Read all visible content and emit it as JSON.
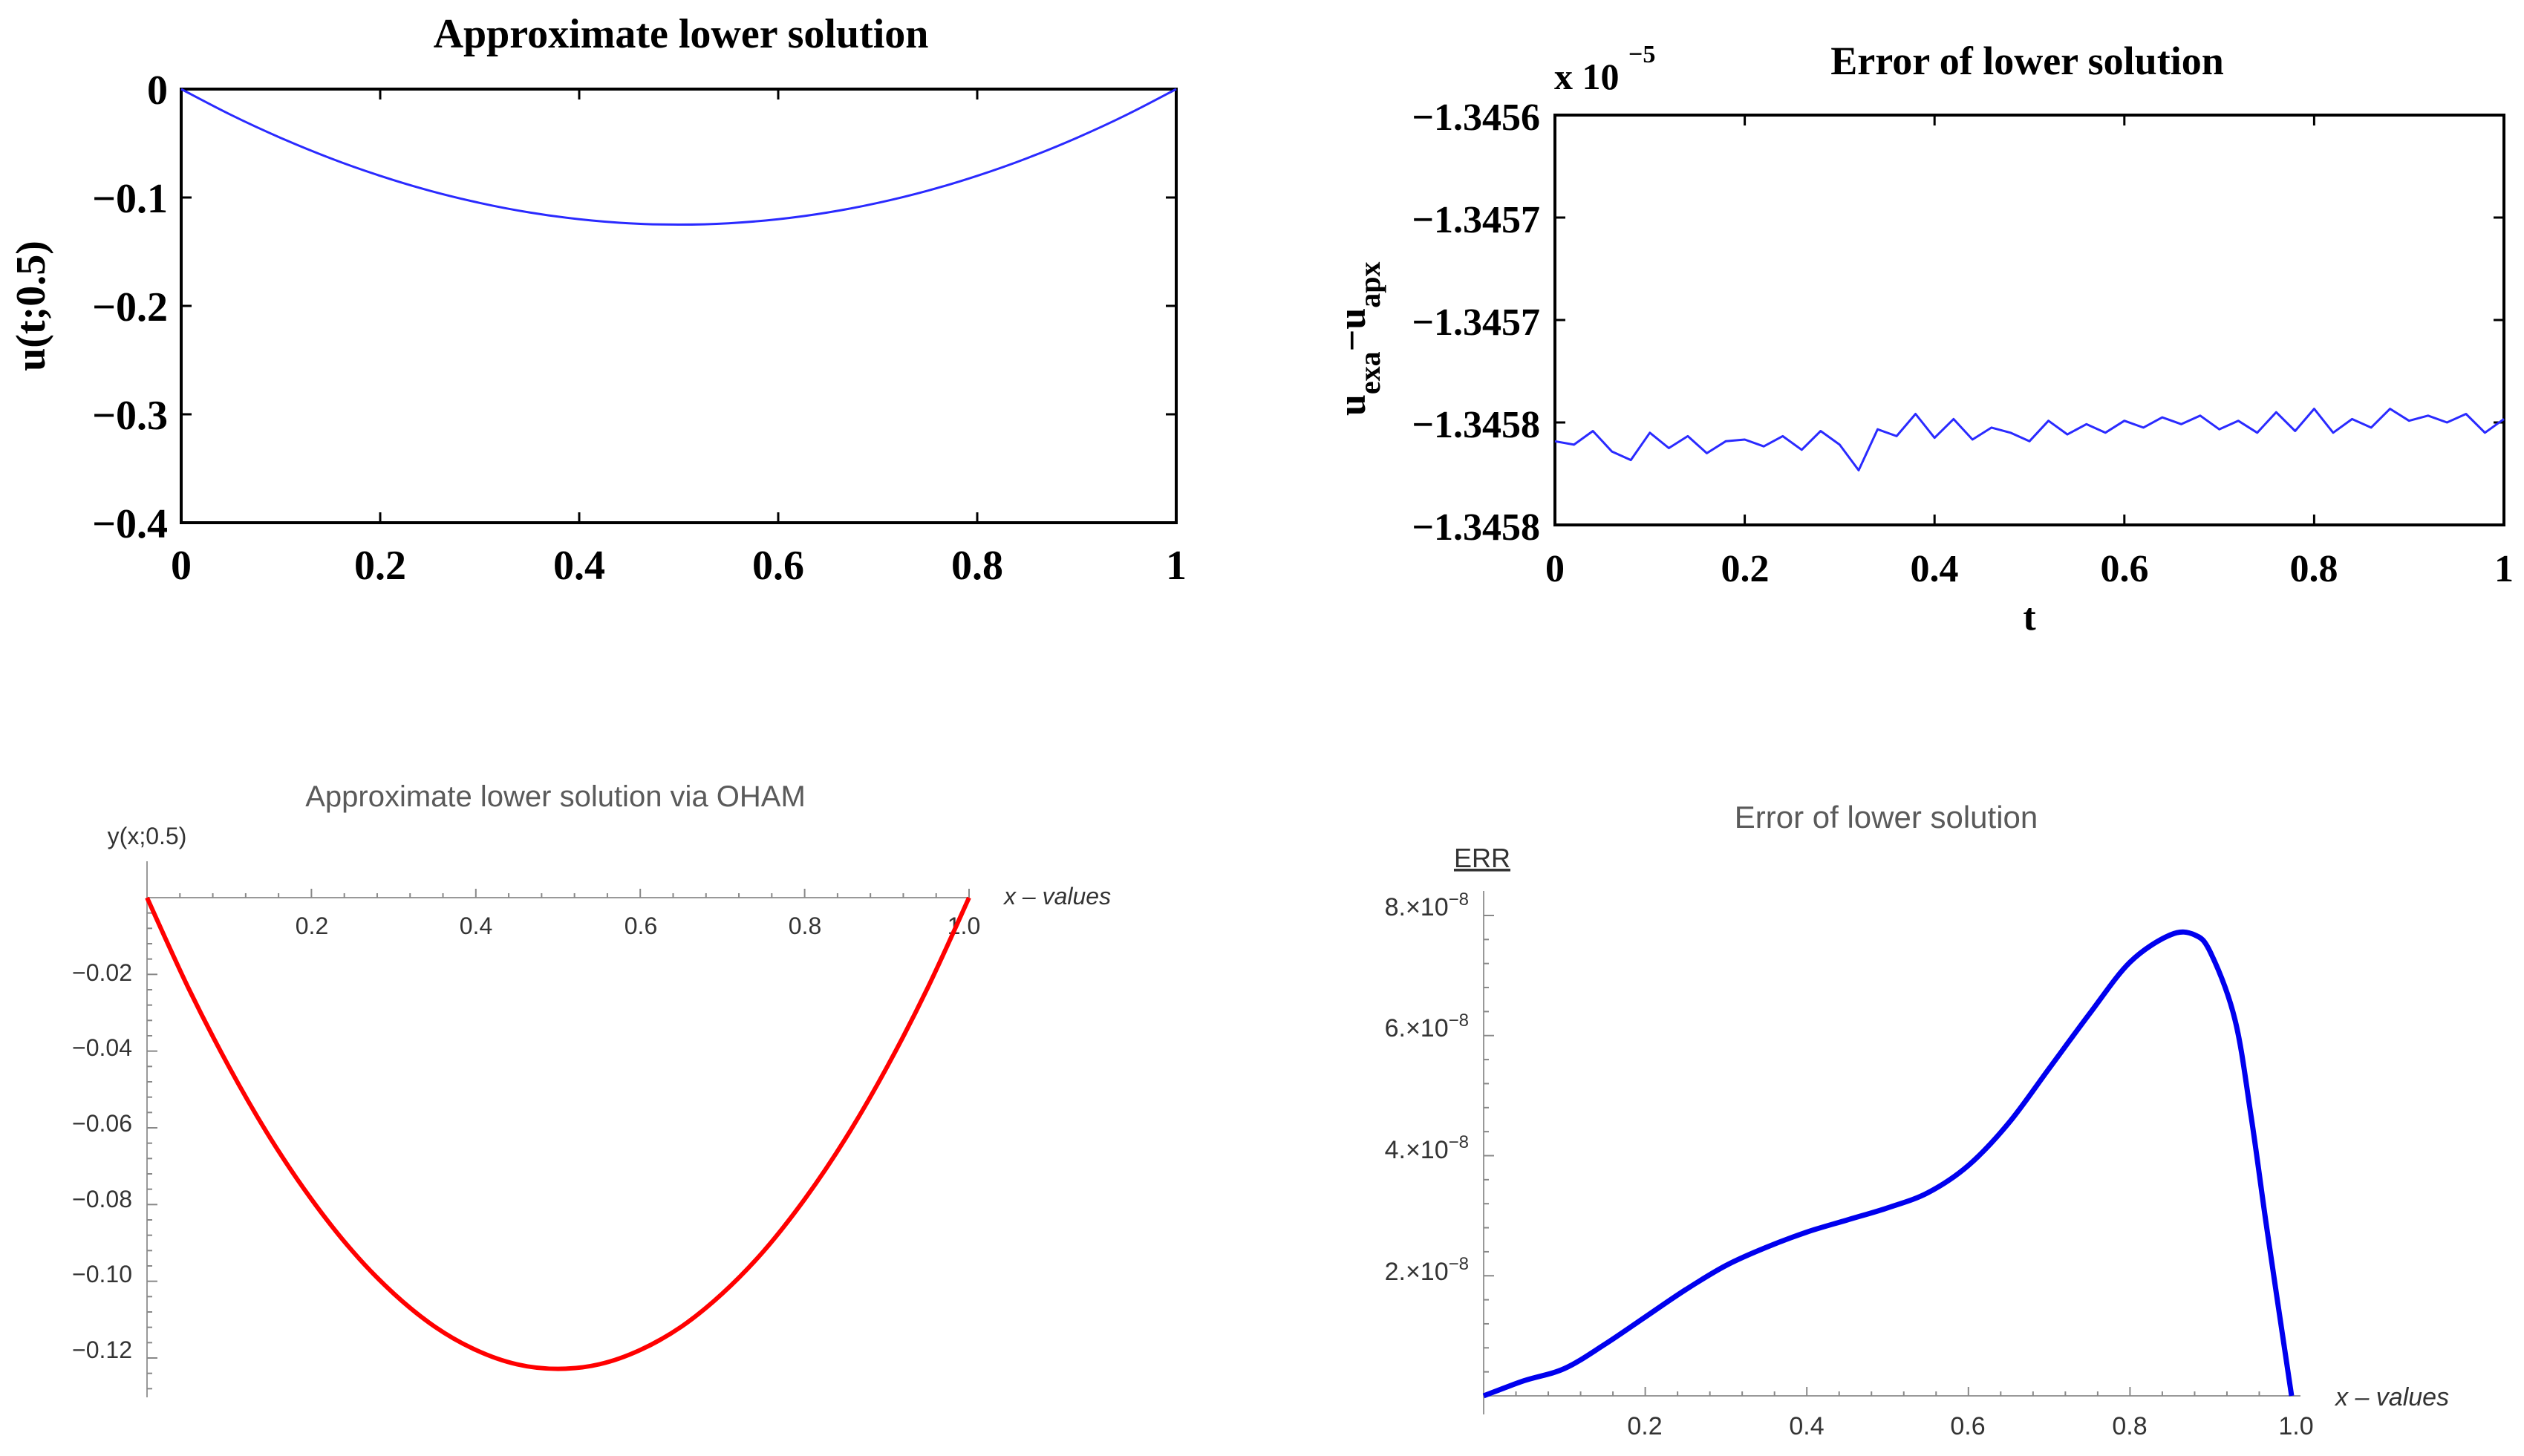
{
  "chart_data": [
    {
      "type": "line",
      "title": "Approximate lower solution",
      "xlabel": "",
      "ylabel": "u(t;0.5)",
      "xlim": [
        0,
        1
      ],
      "ylim": [
        -0.4,
        0
      ],
      "xticks": [
        "0",
        "0.2",
        "0.4",
        "0.6",
        "0.8",
        "1"
      ],
      "yticks": [
        "0",
        "−0.1",
        "−0.2",
        "−0.3",
        "−0.4"
      ],
      "series": [
        {
          "name": "u(t;0.5)",
          "color": "#2a2aff",
          "x": [
            0,
            0.05,
            0.1,
            0.15,
            0.2,
            0.25,
            0.3,
            0.35,
            0.4,
            0.45,
            0.5,
            0.55,
            0.6,
            0.65,
            0.7,
            0.75,
            0.8,
            0.85,
            0.9,
            0.95,
            1
          ],
          "y": [
            0,
            -0.0238,
            -0.045,
            -0.0638,
            -0.08,
            -0.0938,
            -0.105,
            -0.1138,
            -0.12,
            -0.1238,
            -0.125,
            -0.1238,
            -0.12,
            -0.1138,
            -0.105,
            -0.0938,
            -0.08,
            -0.0638,
            -0.045,
            -0.0238,
            0
          ]
        }
      ]
    },
    {
      "type": "line",
      "title": "Error of lower solution",
      "xlabel": "t",
      "ylabel_main": "u",
      "ylabel_sub1": "exa",
      "ylabel_mid": "−u",
      "ylabel_sub2": "apx",
      "multiplier": "x 10",
      "multiplier_exp": "−5",
      "xlim": [
        0,
        1
      ],
      "ylim": [
        -1.34584,
        -1.3456
      ],
      "xticks": [
        "0",
        "0.2",
        "0.4",
        "0.6",
        "0.8",
        "1"
      ],
      "yticks": [
        "−1.3456",
        "−1.3457",
        "−1.3457",
        "−1.3458",
        "−1.3458"
      ],
      "series": [
        {
          "name": "error",
          "color": "#2a2aff",
          "x": [
            0,
            0.02,
            0.04,
            0.06,
            0.08,
            0.1,
            0.12,
            0.14,
            0.16,
            0.18,
            0.2,
            0.22,
            0.24,
            0.26,
            0.28,
            0.3,
            0.32,
            0.34,
            0.36,
            0.38,
            0.4,
            0.42,
            0.44,
            0.46,
            0.48,
            0.5,
            0.52,
            0.54,
            0.56,
            0.58,
            0.6,
            0.62,
            0.64,
            0.66,
            0.68,
            0.7,
            0.72,
            0.74,
            0.76,
            0.78,
            0.8,
            0.82,
            0.84,
            0.86,
            0.88,
            0.9,
            0.92,
            0.94,
            0.96,
            0.98,
            1
          ],
          "y": [
            -1.345791,
            -1.345793,
            -1.345785,
            -1.345797,
            -1.345802,
            -1.345786,
            -1.345795,
            -1.345788,
            -1.345798,
            -1.345791,
            -1.34579,
            -1.345794,
            -1.345788,
            -1.345796,
            -1.345785,
            -1.345793,
            -1.345808,
            -1.345784,
            -1.345788,
            -1.345775,
            -1.345789,
            -1.345778,
            -1.34579,
            -1.345783,
            -1.345786,
            -1.345791,
            -1.345779,
            -1.345787,
            -1.345781,
            -1.345786,
            -1.345779,
            -1.345783,
            -1.345777,
            -1.345781,
            -1.345776,
            -1.345784,
            -1.345779,
            -1.345786,
            -1.345774,
            -1.345785,
            -1.345772,
            -1.345786,
            -1.345778,
            -1.345783,
            -1.345772,
            -1.345779,
            -1.345776,
            -1.34578,
            -1.345775,
            -1.345786,
            -1.345778
          ]
        }
      ]
    },
    {
      "type": "line",
      "title": "Approximate lower solution via OHAM",
      "xlabel": "x – values",
      "ylabel": "y(x;0.5)",
      "xlim": [
        0,
        1
      ],
      "ylim": [
        -0.13,
        0
      ],
      "xticks": [
        "0.2",
        "0.4",
        "0.6",
        "0.8",
        "1.0"
      ],
      "yticks": [
        "−0.02",
        "−0.04",
        "−0.06",
        "−0.08",
        "−0.10",
        "−0.12"
      ],
      "series": [
        {
          "name": "y(x;0.5)",
          "color": "#ff0000",
          "x": [
            0,
            0.05,
            0.1,
            0.15,
            0.2,
            0.25,
            0.3,
            0.35,
            0.4,
            0.45,
            0.5,
            0.55,
            0.6,
            0.65,
            0.7,
            0.75,
            0.8,
            0.85,
            0.9,
            0.95,
            1
          ],
          "y": [
            0,
            -0.0238,
            -0.045,
            -0.0638,
            -0.08,
            -0.0938,
            -0.105,
            -0.1138,
            -0.12,
            -0.1238,
            -0.125,
            -0.1238,
            -0.12,
            -0.1138,
            -0.105,
            -0.0938,
            -0.08,
            -0.0638,
            -0.045,
            -0.0238,
            0
          ]
        }
      ]
    },
    {
      "type": "line",
      "title": "Error of lower solution",
      "xlabel": "x – values",
      "ylabel": "ERR",
      "xlim": [
        0,
        1
      ],
      "ylim": [
        0,
        8e-08
      ],
      "xticks": [
        "0.2",
        "0.4",
        "0.6",
        "0.8",
        "1.0"
      ],
      "yticks": [
        "2.×10",
        "4.×10",
        "6.×10",
        "8.×10"
      ],
      "ytick_exponent": "−8",
      "series": [
        {
          "name": "ERR",
          "color": "#0000ee",
          "x": [
            0,
            0.05,
            0.1,
            0.15,
            0.2,
            0.25,
            0.3,
            0.35,
            0.4,
            0.45,
            0.5,
            0.55,
            0.6,
            0.65,
            0.7,
            0.75,
            0.8,
            0.85,
            0.88,
            0.9,
            0.93,
            0.95,
            0.97,
            1
          ],
          "y": [
            0,
            2.5e-09,
            4.5e-09,
            8.5e-09,
            1.3e-08,
            1.75e-08,
            2.15e-08,
            2.45e-08,
            2.7e-08,
            2.9e-08,
            3.1e-08,
            3.35e-08,
            3.8e-08,
            4.5e-08,
            5.4e-08,
            6.3e-08,
            7.15e-08,
            7.6e-08,
            7.6e-08,
            7.3e-08,
            6.2e-08,
            4.6e-08,
            2.7e-08,
            0
          ]
        }
      ]
    }
  ]
}
